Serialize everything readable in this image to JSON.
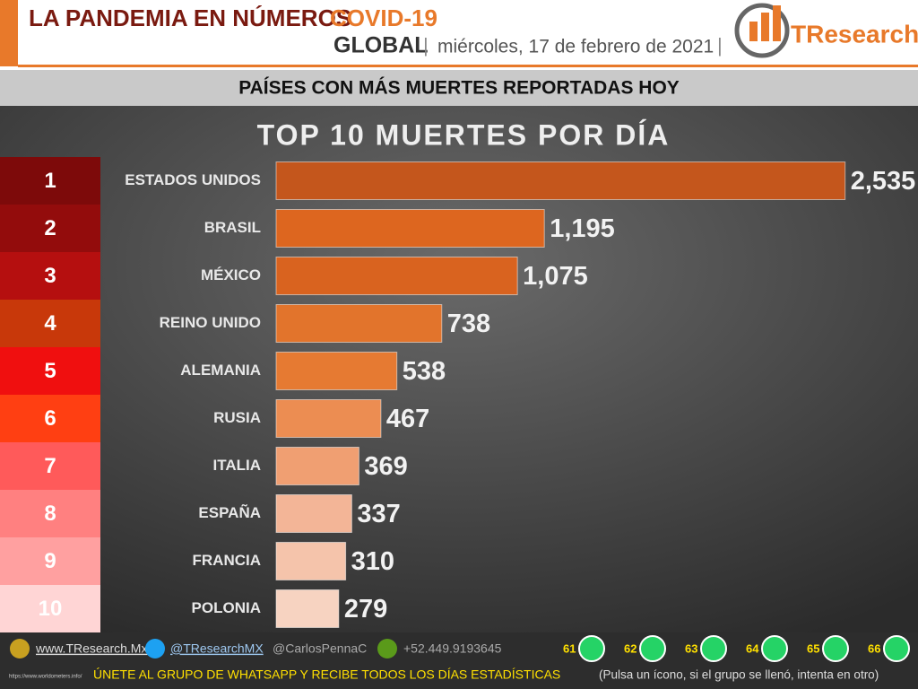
{
  "header": {
    "title": "LA PANDEMIA EN NÚMEROS",
    "tag": "COVID-19",
    "scope": "GLOBAL",
    "date": "miércoles, 17 de febrero de 2021",
    "logo": "TResearch"
  },
  "banner": "PAÍSES CON MÁS MUERTES REPORTADAS HOY",
  "chart_data": {
    "type": "barh",
    "title": "TOP 10 MUERTES POR DÍA",
    "ranks": [
      "1",
      "2",
      "3",
      "4",
      "5",
      "6",
      "7",
      "8",
      "9",
      "10"
    ],
    "rank_colors": [
      "#7d0a0a",
      "#930c0c",
      "#b50f0f",
      "#c8380a",
      "#f00f0f",
      "#ff3f12",
      "#ff5a5a",
      "#ff8080",
      "#ffa0a0",
      "#ffd5d5"
    ],
    "categories": [
      "ESTADOS UNIDOS",
      "BRASIL",
      "MÉXICO",
      "REINO UNIDO",
      "ALEMANIA",
      "RUSIA",
      "ITALIA",
      "ESPAÑA",
      "FRANCIA",
      "POLONIA"
    ],
    "values": [
      2535,
      1195,
      1075,
      738,
      538,
      467,
      369,
      337,
      310,
      279
    ],
    "value_labels": [
      "2,535",
      "1,195",
      "1,075",
      "738",
      "538",
      "467",
      "369",
      "337",
      "310",
      "279"
    ],
    "colors": [
      "#c4561c",
      "#dd661f",
      "#d9631f",
      "#e2742c",
      "#e67a32",
      "#ec8d52",
      "#f09f72",
      "#f3b597",
      "#f5c4ab",
      "#f7d3c1"
    ],
    "xlim": [
      0,
      2700
    ]
  },
  "footer": {
    "site": "www.TResearch.Mx",
    "twitter": "@TResearchMX",
    "twitter2": "@CarlosPennaC",
    "phone": "+52.449.9193645",
    "groups": [
      "61",
      "62",
      "63",
      "64",
      "65",
      "66"
    ],
    "source": "https://www.worldometers.info/",
    "cta": "ÚNETE AL GRUPO DE WHATSAPP Y RECIBE TODOS LOS DÍAS ESTADÍSTICAS",
    "note": "(Pulsa un ícono, si el grupo se llenó, intenta en otro)"
  }
}
